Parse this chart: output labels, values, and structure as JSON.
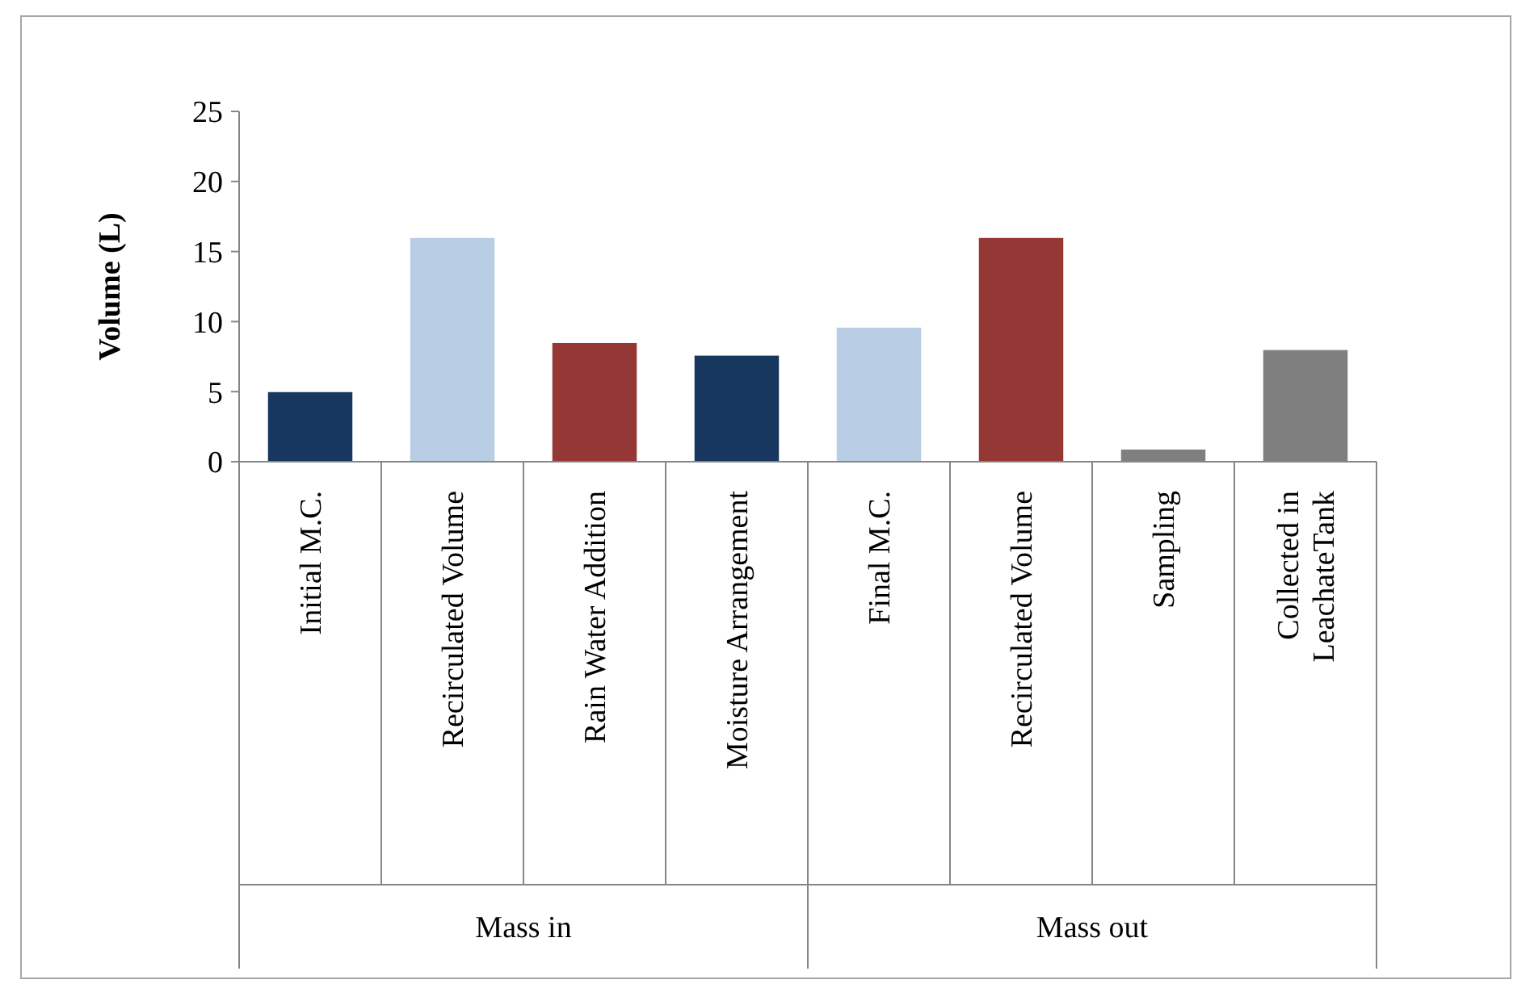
{
  "chart_data": {
    "type": "bar",
    "ylabel": "Volume (L)",
    "categories": [
      "Initial M.C.",
      "Recirculated Volume",
      "Rain Water Addition",
      "Moisture Arrangement",
      "Final M.C.",
      "Recirculated Volume",
      "Sampling",
      "Collected in LeachateTank"
    ],
    "values": [
      5,
      16,
      8.5,
      7.6,
      9.6,
      16,
      0.9,
      8
    ],
    "colors": [
      "#17375e",
      "#b9cde5",
      "#953735",
      "#17375e",
      "#b9cde5",
      "#953735",
      "#7f7f7f",
      "#7f7f7f"
    ],
    "ylim": [
      0,
      25
    ],
    "yticks": [
      0,
      5,
      10,
      15,
      20,
      25
    ],
    "grid": false,
    "annotations": [
      "Mass in",
      "Mass out"
    ]
  }
}
